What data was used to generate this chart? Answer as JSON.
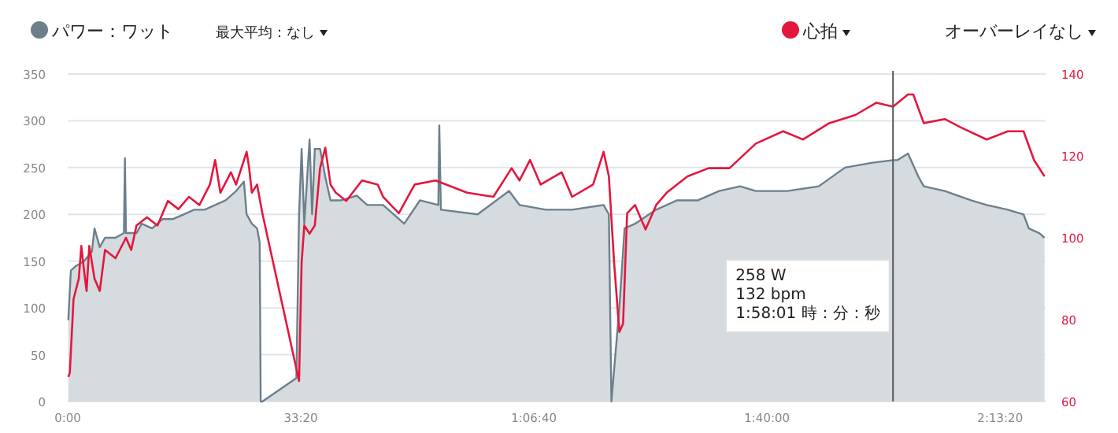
{
  "chart_data": {
    "type": "area",
    "series": [
      {
        "name": "パワー：ワット",
        "color": "#6c808c",
        "x": [
          5,
          27,
          72,
          140,
          207,
          230,
          275,
          320,
          410,
          482,
          491,
          500,
          590,
          635,
          725,
          815,
          905,
          995,
          1085,
          1175,
          1265,
          1355,
          1445,
          1512,
          1535,
          1580,
          1625,
          1647,
          1656,
          1670,
          1962,
          1985,
          2007,
          2030,
          2075,
          2097,
          2120,
          2165,
          2210,
          2255,
          2345,
          2480,
          2570,
          2706,
          2887,
          3022,
          3180,
          3188,
          3202,
          3517,
          3787,
          3877,
          4103,
          4328,
          4598,
          4643,
          4665,
          4733,
          4778,
          4868,
          5049,
          5228,
          5408,
          5589,
          5769,
          5904,
          6174,
          6444,
          6669,
          6894,
          7081,
          7120,
          7210,
          7300,
          7345,
          7525,
          7750,
          7885,
          8066,
          8201,
          8246,
          8336,
          8381
        ],
        "values": [
          87,
          140,
          145,
          150,
          160,
          185,
          165,
          175,
          175,
          180,
          260,
          180,
          180,
          190,
          185,
          195,
          195,
          200,
          205,
          205,
          210,
          215,
          225,
          235,
          200,
          190,
          185,
          170,
          0,
          0,
          25,
          200,
          270,
          190,
          280,
          200,
          270,
          270,
          240,
          215,
          215,
          220,
          210,
          210,
          190,
          215,
          210,
          295,
          205,
          200,
          225,
          210,
          205,
          205,
          210,
          200,
          0,
          100,
          185,
          190,
          205,
          215,
          215,
          225,
          230,
          225,
          225,
          230,
          250,
          255,
          258,
          258,
          265,
          240,
          230,
          225,
          215,
          210,
          205,
          200,
          185,
          180,
          175
        ]
      },
      {
        "name": "心拍",
        "type": "line",
        "axis": "y2",
        "color": "#e3173e",
        "x": [
          5,
          18,
          50,
          95,
          117,
          140,
          162,
          185,
          230,
          275,
          320,
          410,
          500,
          545,
          590,
          680,
          770,
          860,
          950,
          1040,
          1130,
          1220,
          1265,
          1310,
          1400,
          1445,
          1535,
          1557,
          1580,
          1625,
          1670,
          1985,
          2007,
          2030,
          2075,
          2120,
          2165,
          2210,
          2255,
          2300,
          2390,
          2525,
          2660,
          2706,
          2841,
          2977,
          3157,
          3427,
          3652,
          3809,
          3877,
          3967,
          4058,
          4238,
          4328,
          4508,
          4598,
          4643,
          4688,
          4733,
          4765,
          4800,
          4868,
          4958,
          5049,
          5139,
          5318,
          5498,
          5678,
          5904,
          6138,
          6309,
          6534,
          6759,
          6939,
          7081,
          7210,
          7255,
          7345,
          7525,
          7660,
          7885,
          8066,
          8201,
          8291,
          8381
        ],
        "values": [
          66,
          67,
          85,
          90,
          98,
          92,
          87,
          98,
          90,
          87,
          97,
          95,
          100,
          97,
          103,
          105,
          103,
          109,
          107,
          110,
          108,
          113,
          119,
          111,
          116,
          113,
          121,
          117,
          111,
          113,
          106,
          65,
          94,
          103,
          101,
          103,
          117,
          122,
          113,
          111,
          109,
          114,
          113,
          110,
          106,
          113,
          114,
          111,
          110,
          117,
          114,
          119,
          113,
          116,
          110,
          113,
          121,
          115,
          94,
          77,
          79,
          106,
          108,
          102,
          108,
          111,
          115,
          117,
          117,
          123,
          126,
          124,
          128,
          130,
          133,
          132,
          135,
          135,
          128,
          129,
          127,
          124,
          126,
          126,
          119,
          115
        ]
      }
    ],
    "xlim": [
      0,
      8390
    ],
    "xticks": [
      {
        "value": 0,
        "label": "0:00"
      },
      {
        "value": 2000,
        "label": "33:20"
      },
      {
        "value": 4000,
        "label": "1:06:40"
      },
      {
        "value": 6000,
        "label": "1:40:00"
      },
      {
        "value": 8000,
        "label": "2:13:20"
      }
    ],
    "ylim": [
      0,
      350
    ],
    "yticks": [
      0,
      50,
      100,
      150,
      200,
      250,
      300,
      350
    ],
    "y2lim": [
      60,
      140
    ],
    "y2ticks": [
      60,
      80,
      100,
      120,
      140
    ],
    "grid": "y",
    "legend": "top",
    "ref_lines": [
      {
        "axis": "x",
        "value": 7081,
        "color": "#555555"
      }
    ],
    "annotations": [
      "最大平均：なし",
      "オーバーレイなし",
      "258 W",
      "132 bpm",
      "1:58:01 時：分：秒"
    ]
  }
}
